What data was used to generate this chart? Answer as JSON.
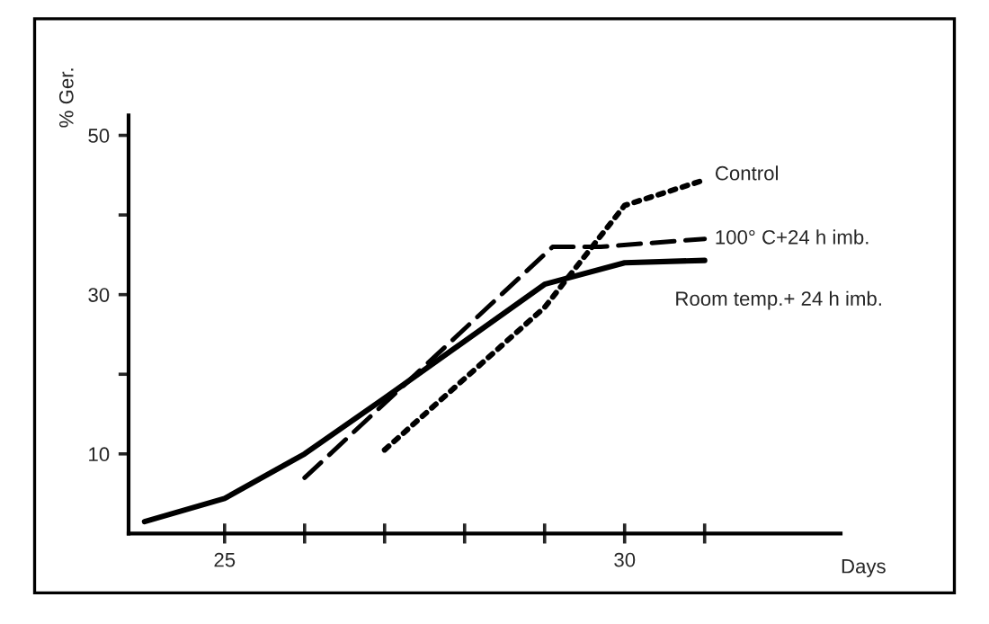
{
  "chart_data": {
    "type": "line",
    "xlabel": "Days",
    "ylabel": "% Ger.",
    "xlim": [
      23.8,
      32.7
    ],
    "xticks": [
      {
        "value": 25,
        "label": "25"
      },
      {
        "value": 26,
        "label": null
      },
      {
        "value": 27,
        "label": null
      },
      {
        "value": 28,
        "label": null
      },
      {
        "value": 29,
        "label": null
      },
      30,
      {
        "value": 31,
        "label": null
      }
    ],
    "ylim": [
      0,
      52.5
    ],
    "yticks": [
      10,
      {
        "value": 20,
        "label": null
      },
      30,
      {
        "value": 40,
        "label": null
      },
      50
    ],
    "grid": false,
    "legend": false,
    "marker": "none",
    "series": [
      {
        "name": "Control",
        "color": "#000000",
        "line_style": "dotted",
        "x": [
          27,
          29,
          30,
          31
        ],
        "values": [
          10.5,
          28.4,
          41.2,
          44.4
        ]
      },
      {
        "name": "100° C+24 h imb.",
        "color": "#000000",
        "line_style": "dashed",
        "x": [
          26,
          29.1,
          29.7,
          31
        ],
        "values": [
          7,
          36,
          36,
          37
        ]
      },
      {
        "name": "Room temp.+ 24 h imb.",
        "color": "#000000",
        "line_style": "solid",
        "x": [
          24,
          25,
          26,
          27,
          29,
          30,
          31
        ],
        "values": [
          1.5,
          4.4,
          10,
          17,
          31.3,
          34,
          34.3
        ]
      }
    ]
  }
}
